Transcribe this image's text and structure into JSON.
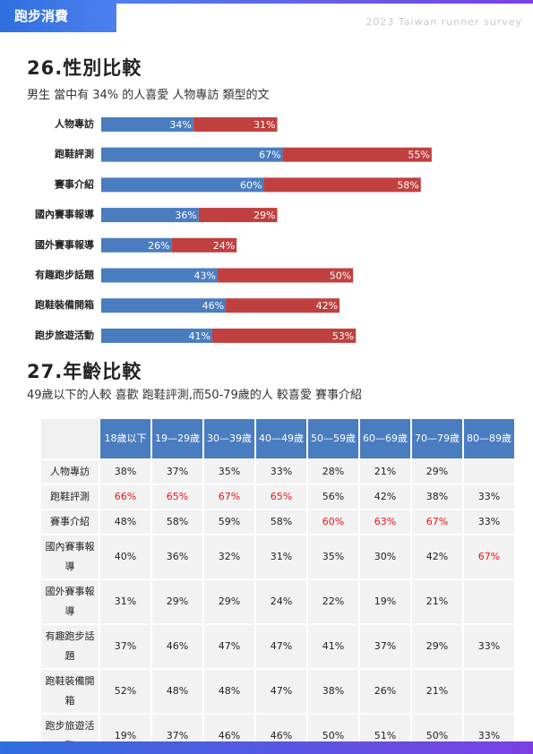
{
  "header": {
    "tag": "跑步消費",
    "survey": "2023 Taiwan runner survey"
  },
  "chart_data": {
    "type": "bar",
    "horizontal": true,
    "stacked": true,
    "title": "26.性別比較",
    "subtitle": "男生 當中有 34% 的人喜愛 人物專訪 類型的文",
    "categories": [
      "人物專訪",
      "跑鞋評測",
      "賽事介紹",
      "國內賽事報導",
      "國外賽事報導",
      "有趣跑步話題",
      "跑鞋裝備開箱",
      "跑步旅遊活動"
    ],
    "xlim": [
      0,
      128
    ],
    "series": [
      {
        "color": "#4a7cc0",
        "values": [
          34,
          67,
          60,
          36,
          26,
          43,
          46,
          41
        ],
        "value_labels": [
          "34%",
          "67%",
          "60%",
          "36%",
          "26%",
          "43%",
          "46%",
          "41%"
        ]
      },
      {
        "color": "#c0403f",
        "values": [
          31,
          55,
          58,
          29,
          24,
          50,
          42,
          53
        ],
        "value_labels": [
          "31%",
          "55%",
          "58%",
          "29%",
          "24%",
          "50%",
          "42%",
          "53%"
        ]
      }
    ]
  },
  "section2": {
    "title": "27.年齡比較",
    "subtitle": "49歲以下的人較 喜歡 跑鞋評測,而50-79歲的人 較喜愛 賽事介紹",
    "table": {
      "columns": [
        "18歲以下",
        "19—29歲",
        "30—39歲",
        "40—49歲",
        "50—59歲",
        "60—69歲",
        "70—79歲",
        "80—89歲"
      ],
      "rows": [
        {
          "label": "人物專訪",
          "cells": [
            "38%",
            "37%",
            "35%",
            "33%",
            "28%",
            "21%",
            "29%",
            null
          ]
        },
        {
          "label": "跑鞋評測",
          "cells": [
            "66%",
            "65%",
            "67%",
            "65%",
            "56%",
            "42%",
            "38%",
            "33%"
          ]
        },
        {
          "label": "賽事介紹",
          "cells": [
            "48%",
            "58%",
            "59%",
            "58%",
            "60%",
            "63%",
            "67%",
            "33%"
          ]
        },
        {
          "label": "國內賽事報導",
          "cells": [
            "40%",
            "36%",
            "32%",
            "31%",
            "35%",
            "30%",
            "42%",
            "67%"
          ]
        },
        {
          "label": "國外賽事報導",
          "cells": [
            "31%",
            "29%",
            "29%",
            "24%",
            "22%",
            "19%",
            "21%",
            null
          ]
        },
        {
          "label": "有趣跑步話題",
          "cells": [
            "37%",
            "46%",
            "47%",
            "47%",
            "41%",
            "37%",
            "29%",
            "33%"
          ]
        },
        {
          "label": "跑鞋裝備開箱",
          "cells": [
            "52%",
            "48%",
            "48%",
            "47%",
            "38%",
            "26%",
            "21%",
            null
          ]
        },
        {
          "label": "跑步旅遊活動",
          "cells": [
            "19%",
            "37%",
            "46%",
            "46%",
            "50%",
            "51%",
            "50%",
            "33%"
          ]
        }
      ],
      "highlight": {
        "color": "#e8141a",
        "cells": [
          [
            1,
            0
          ],
          [
            1,
            1
          ],
          [
            1,
            2
          ],
          [
            1,
            3
          ],
          [
            2,
            4
          ],
          [
            2,
            5
          ],
          [
            2,
            6
          ],
          [
            3,
            7
          ]
        ]
      }
    }
  }
}
